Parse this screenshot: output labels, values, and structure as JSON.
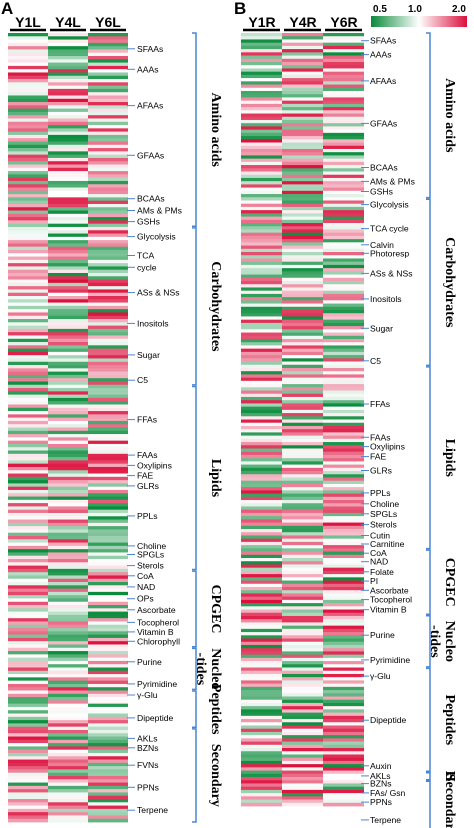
{
  "panels": [
    {
      "letter": "A",
      "columns": [
        "Y1L",
        "Y4L",
        "Y6L"
      ],
      "seed": 7,
      "row_labels": [
        {
          "text": "SFAAs",
          "pos": 0.02
        },
        {
          "text": "AAAs",
          "pos": 0.046
        },
        {
          "text": "AFAAs",
          "pos": 0.092
        },
        {
          "text": "GFAAs",
          "pos": 0.155
        },
        {
          "text": "BCAAs",
          "pos": 0.21
        },
        {
          "text": "AMs & PMs",
          "pos": 0.225
        },
        {
          "text": "GSHs",
          "pos": 0.239
        },
        {
          "text": "Glycolysis",
          "pos": 0.258
        },
        {
          "text": "TCA",
          "pos": 0.282
        },
        {
          "text": "cycle",
          "pos": 0.297
        },
        {
          "text": "ASs & NSs",
          "pos": 0.329
        },
        {
          "text": "Inositols",
          "pos": 0.368
        },
        {
          "text": "Sugar",
          "pos": 0.408
        },
        {
          "text": "C5",
          "pos": 0.44
        },
        {
          "text": "FFAs",
          "pos": 0.49
        },
        {
          "text": "FAAs",
          "pos": 0.535
        },
        {
          "text": "Oxylipins",
          "pos": 0.548
        },
        {
          "text": "FAE",
          "pos": 0.561
        },
        {
          "text": "GLRs",
          "pos": 0.574
        },
        {
          "text": "PPLs",
          "pos": 0.612
        },
        {
          "text": "Choline",
          "pos": 0.65
        },
        {
          "text": "SPGLs",
          "pos": 0.661
        },
        {
          "text": "Sterols",
          "pos": 0.675
        },
        {
          "text": "CoA",
          "pos": 0.688
        },
        {
          "text": "NAD",
          "pos": 0.702
        },
        {
          "text": "OPs",
          "pos": 0.717
        },
        {
          "text": "Ascorbate",
          "pos": 0.731
        },
        {
          "text": "Tocopherol",
          "pos": 0.747
        },
        {
          "text": "Vitamin B",
          "pos": 0.759
        },
        {
          "text": "Chlorophyll",
          "pos": 0.771
        },
        {
          "text": "Purine",
          "pos": 0.797
        },
        {
          "text": "Pyrimidine",
          "pos": 0.825
        },
        {
          "text": "γ-Glu",
          "pos": 0.839
        },
        {
          "text": "Dipeptide",
          "pos": 0.868
        },
        {
          "text": "AKLs",
          "pos": 0.894
        },
        {
          "text": "BZNs",
          "pos": 0.906
        },
        {
          "text": "FVNs",
          "pos": 0.928
        },
        {
          "text": "PPNs",
          "pos": 0.956
        },
        {
          "text": "Terpene",
          "pos": 0.985
        }
      ],
      "groups": [
        {
          "label": "Amino acids",
          "start": 0.0,
          "end": 0.245
        },
        {
          "label": "Carbohydrates",
          "start": 0.247,
          "end": 0.446
        },
        {
          "label": "Lipids",
          "start": 0.448,
          "end": 0.68
        },
        {
          "label": "CPGEC",
          "start": 0.682,
          "end": 0.778
        },
        {
          "label": "Nucleo",
          "label2": "-tides",
          "start": 0.78,
          "end": 0.832
        },
        {
          "label": "Peptides",
          "start": 0.834,
          "end": 0.88
        },
        {
          "label": "Secondary",
          "start": 0.882,
          "end": 1.0
        }
      ]
    },
    {
      "letter": "B",
      "columns": [
        "Y1R",
        "Y4R",
        "Y6R"
      ],
      "seed": 19,
      "row_labels": [
        {
          "text": "SFAAs",
          "pos": 0.01
        },
        {
          "text": "AAAs",
          "pos": 0.028
        },
        {
          "text": "AFAAs",
          "pos": 0.062
        },
        {
          "text": "GFAAs",
          "pos": 0.117
        },
        {
          "text": "BCAAs",
          "pos": 0.174
        },
        {
          "text": "AMs & PMs",
          "pos": 0.192
        },
        {
          "text": "GSHs",
          "pos": 0.205
        },
        {
          "text": "Glycolysis",
          "pos": 0.222
        },
        {
          "text": "TCA cycle",
          "pos": 0.253
        },
        {
          "text": "Calvin",
          "pos": 0.274
        },
        {
          "text": "Photoresp",
          "pos": 0.285
        },
        {
          "text": "ASs & NSs",
          "pos": 0.311
        },
        {
          "text": "Inositols",
          "pos": 0.344
        },
        {
          "text": "Sugar",
          "pos": 0.382
        },
        {
          "text": "C5",
          "pos": 0.424
        },
        {
          "text": "FFAs",
          "pos": 0.48
        },
        {
          "text": "FAAs",
          "pos": 0.523
        },
        {
          "text": "Oxylipins",
          "pos": 0.535
        },
        {
          "text": "FAE",
          "pos": 0.548
        },
        {
          "text": "GLRs",
          "pos": 0.566
        },
        {
          "text": "PPLs",
          "pos": 0.595
        },
        {
          "text": "Choline",
          "pos": 0.609
        },
        {
          "text": "SPGLs",
          "pos": 0.622
        },
        {
          "text": "Sterols",
          "pos": 0.636
        },
        {
          "text": "Cutin",
          "pos": 0.65
        },
        {
          "text": "Carnitine",
          "pos": 0.661
        },
        {
          "text": "CoA",
          "pos": 0.673
        },
        {
          "text": "NAD",
          "pos": 0.684
        },
        {
          "text": "Folate",
          "pos": 0.697
        },
        {
          "text": "PI",
          "pos": 0.709
        },
        {
          "text": "Ascorbate",
          "pos": 0.721
        },
        {
          "text": "Tocopherol",
          "pos": 0.733
        },
        {
          "text": "Vitamin B",
          "pos": 0.746
        },
        {
          "text": "Purine",
          "pos": 0.779
        },
        {
          "text": "Pyrimidine",
          "pos": 0.811
        },
        {
          "text": "γ-Glu",
          "pos": 0.832
        },
        {
          "text": "Dipeptide",
          "pos": 0.889
        },
        {
          "text": "Auxin",
          "pos": 0.948
        },
        {
          "text": "AKLs",
          "pos": 0.961
        },
        {
          "text": "BZNs",
          "pos": 0.971
        },
        {
          "text": "FAs/ Gsn",
          "pos": 0.983
        },
        {
          "text": "PPNs",
          "pos": 0.995
        },
        {
          "text": "Terpene",
          "pos": 1.018
        }
      ],
      "groups": [
        {
          "label": "Amino acids",
          "start": 0.0,
          "end": 0.213
        },
        {
          "label": "Carbohydrates",
          "start": 0.215,
          "end": 0.43
        },
        {
          "label": "Lipids",
          "start": 0.432,
          "end": 0.667
        },
        {
          "label": "CPGEC",
          "start": 0.669,
          "end": 0.752
        },
        {
          "label": "Nucleo",
          "label2": "-tides",
          "start": 0.754,
          "end": 0.82
        },
        {
          "label": "Peptides",
          "start": 0.822,
          "end": 0.955
        },
        {
          "label": "H",
          "start": 0.957,
          "end": 0.966
        },
        {
          "label": "Secondary",
          "start": 0.968,
          "end": 1.03
        }
      ]
    }
  ],
  "legend": {
    "ticks": [
      "0.5",
      "1.0",
      "2.0"
    ],
    "colors": [
      "#0a8a3a",
      "#ffffff",
      "#dc0f3c"
    ]
  },
  "chart_data": {
    "type": "heatmap",
    "row_groups": [
      "Amino acids",
      "Carbohydrates",
      "Lipids",
      "CPGEC",
      "Nucleo-tides",
      "Peptides",
      "Secondary"
    ],
    "columns_A": [
      "Y1L",
      "Y4L",
      "Y6L"
    ],
    "columns_B": [
      "Y1R",
      "Y4R",
      "Y6R"
    ],
    "color_scale": {
      "min": 0.5,
      "mid": 1.0,
      "max": 2.0,
      "low_color": "#0a8a3a",
      "mid_color": "#ffffff",
      "high_color": "#dc0f3c"
    }
  }
}
